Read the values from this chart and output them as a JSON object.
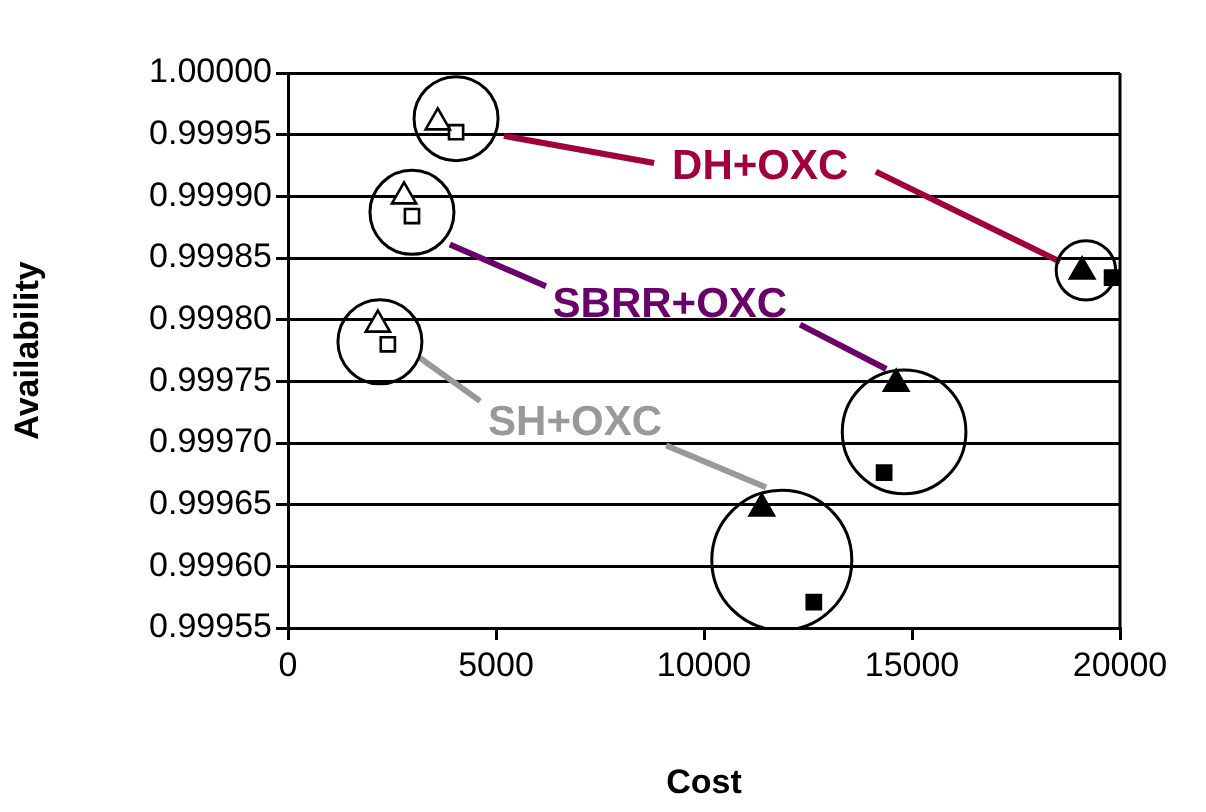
{
  "chart_data": {
    "type": "scatter",
    "xlabel": "Cost",
    "ylabel": "Availability",
    "xlim": [
      0,
      20000
    ],
    "xticks": [
      0,
      5000,
      10000,
      15000,
      20000
    ],
    "ylim": [
      0.99955,
      1
    ],
    "yticks": [
      0.99955,
      {
        "value": 0.9996,
        "label": "0.99960"
      },
      0.99965,
      {
        "value": 0.9997,
        "label": "0.99970"
      },
      0.99975,
      {
        "value": 0.9998,
        "label": "0.99980"
      },
      0.99985,
      {
        "value": 0.9999,
        "label": "0.99990"
      },
      0.99995,
      {
        "value": 1,
        "label": "1.00000"
      }
    ],
    "grid": "y",
    "legend": false,
    "series": [
      {
        "type": "scatter",
        "marker": "triangle",
        "color": "#ffffff",
        "x": [
          3600,
          2790,
          2160
        ],
        "values": [
          0.99996,
          0.9999,
          0.999796
        ]
      },
      {
        "type": "scatter",
        "marker": "square",
        "color": "#ffffff",
        "x": [
          4040,
          2980,
          2400
        ],
        "values": [
          0.999952,
          0.999884,
          0.99978
        ]
      },
      {
        "type": "scatter",
        "marker": "triangle",
        "color": "#000000",
        "x": [
          19090,
          14620,
          11390
        ],
        "values": [
          0.999839,
          0.999748,
          0.999647
        ]
      },
      {
        "type": "scatter",
        "marker": "square",
        "color": "#000000",
        "x": [
          19810,
          14330,
          12640
        ],
        "values": [
          0.999834,
          0.999676,
          0.999571
        ]
      },
      {
        "type": "bubble",
        "color": "#000000",
        "x": [
          4040,
          19180,
          2980,
          14810,
          2210,
          11870
        ],
        "values": [
          0.999963,
          0.99984,
          0.999887,
          0.999709,
          0.999782,
          0.999605
        ],
        "sizes": [
          0.36,
          0.18,
          0.36,
          0.78,
          0.36,
          1
        ]
      },
      {
        "type": "line",
        "name": "DH+OXC",
        "color": "#a0003c",
        "x": [
          5190,
          8800,
          11350,
          14130,
          18560
        ],
        "values": [
          0.999949,
          0.999927,
          null,
          0.99992,
          0.999847
        ]
      },
      {
        "type": "line",
        "name": "SBRR+OXC",
        "color": "#6a006a",
        "x": [
          3890,
          6200,
          9180,
          12310,
          14380
        ],
        "values": [
          0.999861,
          0.999827,
          null,
          0.999796,
          0.99976
        ]
      },
      {
        "type": "line",
        "name": "SH+OXC",
        "color": "#999999",
        "x": [
          3170,
          4620,
          6900,
          9090,
          11490
        ],
        "values": [
          0.999769,
          0.999734,
          null,
          0.999698,
          0.999664
        ]
      }
    ]
  }
}
